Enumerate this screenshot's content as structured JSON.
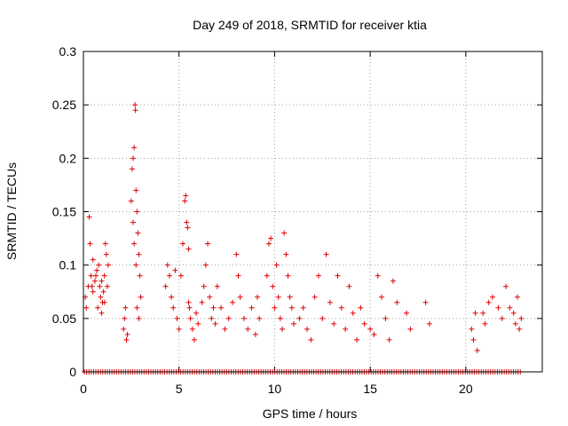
{
  "chart_data": {
    "type": "scatter",
    "title": "Day 249 of 2018, SRMTID for receiver ktia",
    "xlabel": "GPS time / hours",
    "ylabel": "SRMTID / TECUs",
    "xlim": [
      0,
      24
    ],
    "ylim": [
      0,
      0.3
    ],
    "xticks": [
      0,
      5,
      10,
      15,
      20
    ],
    "xtick_labels": [
      "0",
      "5",
      "10",
      "15",
      "20"
    ],
    "yticks": [
      0,
      0.05,
      0.1,
      0.15,
      0.2,
      0.25,
      0.3
    ],
    "ytick_labels": [
      "0",
      "0.05",
      "0.1",
      "0.15",
      "0.2",
      "0.25",
      "0.3"
    ],
    "grid": true,
    "marker": "+",
    "color": "#e00000",
    "series": [
      {
        "name": "SRMTID",
        "x": [
          0.1,
          0.15,
          0.25,
          0.3,
          0.35,
          0.4,
          0.45,
          0.5,
          0.6,
          0.7,
          0.8,
          0.85,
          0.9,
          0.95,
          1.0,
          1.05,
          1.1,
          1.15,
          1.2,
          1.25,
          1.3,
          0.5,
          0.65,
          0.75,
          0.95,
          1.1,
          2.1,
          2.15,
          2.2,
          2.25,
          2.3,
          2.5,
          2.55,
          2.6,
          2.65,
          2.7,
          2.72,
          2.75,
          2.8,
          2.85,
          2.9,
          2.95,
          3.0,
          2.6,
          2.65,
          2.75,
          2.8,
          2.9,
          4.3,
          4.4,
          4.5,
          4.6,
          4.7,
          4.8,
          4.9,
          5.0,
          5.1,
          5.2,
          5.3,
          5.4,
          5.5,
          5.6,
          5.7,
          5.8,
          5.9,
          6.0,
          5.35,
          5.45,
          5.5,
          5.55,
          6.2,
          6.3,
          6.4,
          6.5,
          6.6,
          6.7,
          6.8,
          6.9,
          7.0,
          7.2,
          7.4,
          7.6,
          7.8,
          8.0,
          8.1,
          8.2,
          8.4,
          8.6,
          8.8,
          9.0,
          9.1,
          9.2,
          9.6,
          9.7,
          9.8,
          9.9,
          10.0,
          10.1,
          10.2,
          10.3,
          10.4,
          10.5,
          10.6,
          10.7,
          10.8,
          10.9,
          11.0,
          11.3,
          11.5,
          11.7,
          11.9,
          12.1,
          12.3,
          12.5,
          12.7,
          12.9,
          13.1,
          13.3,
          13.5,
          13.7,
          13.9,
          14.1,
          14.3,
          14.5,
          14.7,
          15.0,
          15.2,
          15.4,
          15.6,
          15.8,
          16.0,
          16.2,
          16.4,
          16.9,
          17.1,
          17.9,
          18.1,
          20.3,
          20.4,
          20.5,
          20.6,
          20.9,
          21.0,
          21.2,
          21.4,
          21.7,
          21.9,
          22.1,
          22.3,
          22.5,
          22.6,
          22.7,
          22.8,
          22.9
        ],
        "y": [
          0.07,
          0.06,
          0.08,
          0.145,
          0.12,
          0.09,
          0.08,
          0.075,
          0.085,
          0.095,
          0.1,
          0.08,
          0.07,
          0.085,
          0.065,
          0.075,
          0.09,
          0.12,
          0.11,
          0.08,
          0.1,
          0.105,
          0.09,
          0.06,
          0.055,
          0.065,
          0.04,
          0.05,
          0.06,
          0.03,
          0.035,
          0.16,
          0.19,
          0.2,
          0.21,
          0.25,
          0.245,
          0.17,
          0.15,
          0.13,
          0.11,
          0.09,
          0.07,
          0.14,
          0.12,
          0.1,
          0.06,
          0.05,
          0.08,
          0.1,
          0.09,
          0.07,
          0.06,
          0.095,
          0.05,
          0.04,
          0.09,
          0.12,
          0.16,
          0.14,
          0.065,
          0.05,
          0.04,
          0.03,
          0.055,
          0.045,
          0.165,
          0.135,
          0.115,
          0.06,
          0.065,
          0.08,
          0.1,
          0.12,
          0.07,
          0.05,
          0.06,
          0.045,
          0.08,
          0.06,
          0.04,
          0.05,
          0.065,
          0.11,
          0.09,
          0.07,
          0.05,
          0.04,
          0.06,
          0.035,
          0.07,
          0.05,
          0.09,
          0.12,
          0.125,
          0.08,
          0.06,
          0.1,
          0.07,
          0.05,
          0.04,
          0.13,
          0.11,
          0.09,
          0.07,
          0.06,
          0.045,
          0.05,
          0.06,
          0.04,
          0.03,
          0.07,
          0.09,
          0.05,
          0.11,
          0.065,
          0.045,
          0.09,
          0.06,
          0.04,
          0.08,
          0.055,
          0.03,
          0.06,
          0.045,
          0.04,
          0.035,
          0.09,
          0.07,
          0.05,
          0.03,
          0.085,
          0.065,
          0.055,
          0.04,
          0.065,
          0.045,
          0.04,
          0.03,
          0.055,
          0.02,
          0.055,
          0.045,
          0.065,
          0.07,
          0.06,
          0.05,
          0.08,
          0.06,
          0.055,
          0.045,
          0.07,
          0.04,
          0.05
        ]
      }
    ]
  }
}
